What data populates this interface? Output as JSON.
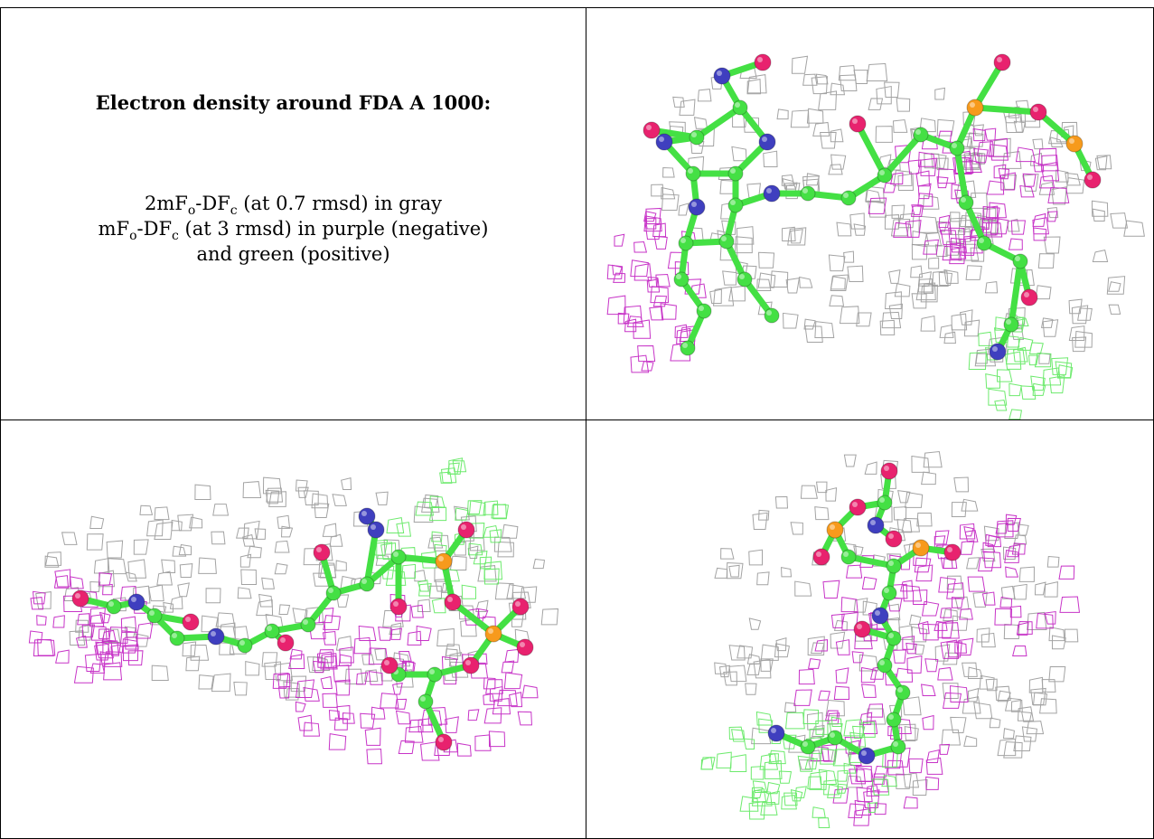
{
  "caption": {
    "title": "Electron density around FDA A 1000:",
    "line1": {
      "a": "2mF",
      "a_sub": "o",
      "b": "-DF",
      "b_sub": "c",
      "rest": " (at 0.7 rmsd) in gray"
    },
    "line2": {
      "a": "mF",
      "a_sub": "o",
      "b": "-DF",
      "b_sub": "c",
      "rest": " (at 3 rmsd) in purple (negative)"
    },
    "line3": "and green (positive)"
  },
  "colors": {
    "carbon": "#44e044",
    "nitrogen": "#3f3fbf",
    "oxygen": "#e8226e",
    "phosphorus": "#f79a1c",
    "mesh_gray": "#9a9a9a",
    "mesh_purple": "#c21fc2",
    "mesh_green": "#5ee85e",
    "grid_line": "#000000"
  },
  "views": [
    "view-1",
    "view-2",
    "view-3"
  ]
}
